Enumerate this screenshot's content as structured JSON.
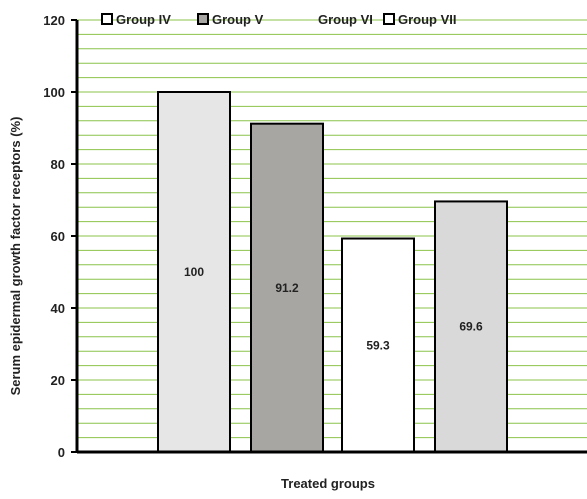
{
  "chart_data": {
    "type": "bar",
    "title": "",
    "xlabel": "Treated groups",
    "ylabel": "Serum epidermal growth factor receptors (%)",
    "ylim": [
      0,
      120
    ],
    "yticks": [
      0,
      20,
      40,
      60,
      80,
      100,
      120
    ],
    "minor_grid_step": 4,
    "grid": true,
    "legend_position": "top",
    "categories": [
      "Group IV",
      "Group V",
      "Group VI",
      "Group VII"
    ],
    "values": [
      100,
      91.2,
      59.3,
      69.6
    ],
    "data_labels": [
      "100",
      "91.2",
      "59.3",
      "69.6"
    ],
    "colors": {
      "bars": [
        "#e6e6e6",
        "#a8a6a3",
        "#ffffff",
        "#d9d9d9"
      ],
      "legend_swatches": [
        "#ffffff",
        "#a8a6a3",
        "#ffffff",
        "#ffffff"
      ],
      "legend_swatch_borders": [
        true,
        true,
        false,
        true
      ],
      "gridline": "#8bc34a",
      "axis": "#000000",
      "text": "#222222"
    }
  }
}
